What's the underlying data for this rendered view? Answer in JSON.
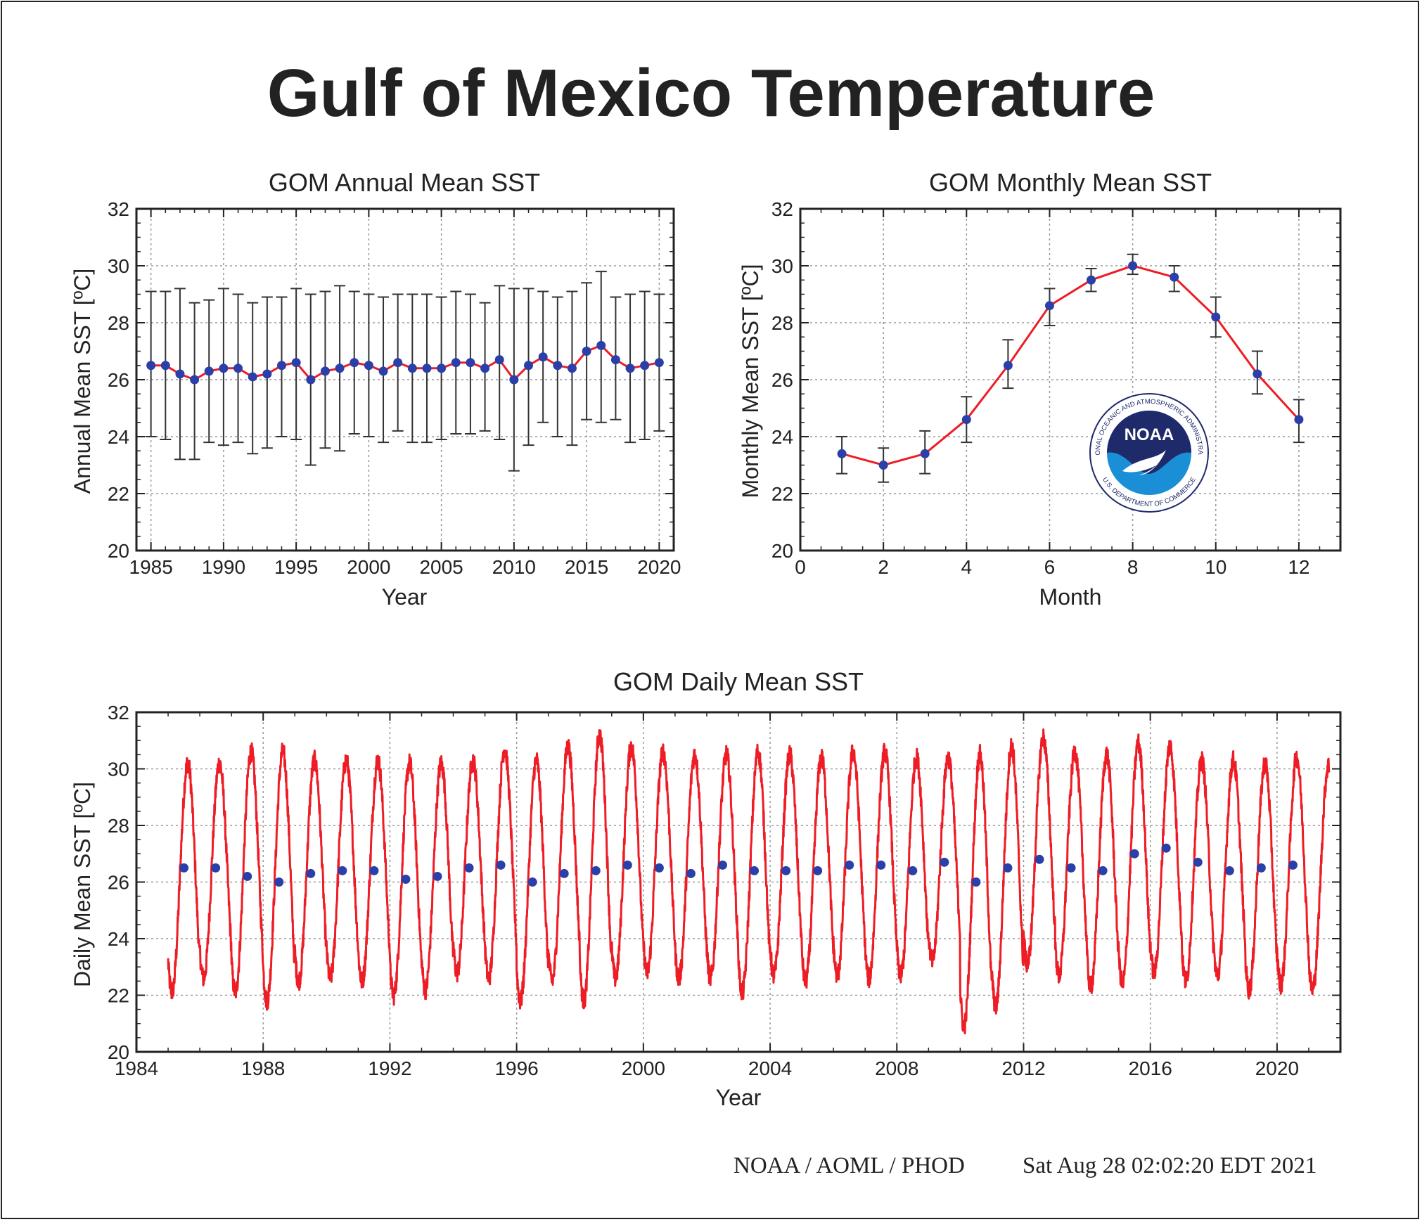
{
  "page_title": "Gulf of Mexico Temperature",
  "footer": {
    "left": "NOAA / AOML / PHOD",
    "right": "Sat Aug 28 02:02:20 EDT 2021"
  },
  "logo": {
    "name": "NOAA",
    "ring_text": "NATIONAL OCEANIC AND ATMOSPHERIC ADMINISTRATION · U.S. DEPARTMENT OF COMMERCE",
    "colors": {
      "navy": "#1f2a6b",
      "blue": "#1a8fd6"
    }
  },
  "colors": {
    "line": "#ee1c25",
    "marker": "#2b3fa8",
    "errorbar": "#333333",
    "grid": "#999999"
  },
  "chart_data": [
    {
      "id": "annual",
      "type": "line",
      "title": "GOM Annual Mean SST",
      "xlabel": "Year",
      "ylabel": "Annual Mean SST [ºC]",
      "xlim": [
        1984,
        2021
      ],
      "ylim": [
        20,
        32
      ],
      "xticks": [
        1985,
        1990,
        1995,
        2000,
        2005,
        2010,
        2015,
        2020
      ],
      "yticks": [
        20,
        22,
        24,
        26,
        28,
        30,
        32
      ],
      "grid": true,
      "x": [
        1985,
        1986,
        1987,
        1988,
        1989,
        1990,
        1991,
        1992,
        1993,
        1994,
        1995,
        1996,
        1997,
        1998,
        1999,
        2000,
        2001,
        2002,
        2003,
        2004,
        2005,
        2006,
        2007,
        2008,
        2009,
        2010,
        2011,
        2012,
        2013,
        2014,
        2015,
        2016,
        2017,
        2018,
        2019,
        2020
      ],
      "values": [
        26.5,
        26.5,
        26.2,
        26.0,
        26.3,
        26.4,
        26.4,
        26.1,
        26.2,
        26.5,
        26.6,
        26.0,
        26.3,
        26.4,
        26.6,
        26.5,
        26.3,
        26.6,
        26.4,
        26.4,
        26.4,
        26.6,
        26.6,
        26.4,
        26.7,
        26.0,
        26.5,
        26.8,
        26.5,
        26.4,
        27.0,
        27.2,
        26.7,
        26.4,
        26.5,
        26.6
      ],
      "err_low": [
        24.0,
        23.9,
        23.2,
        23.2,
        23.8,
        23.7,
        23.8,
        23.4,
        23.6,
        24.0,
        23.9,
        23.0,
        23.6,
        23.5,
        24.1,
        24.0,
        23.8,
        24.2,
        23.8,
        23.8,
        23.9,
        24.1,
        24.1,
        24.2,
        23.9,
        22.8,
        23.7,
        24.5,
        24.0,
        23.7,
        24.6,
        24.5,
        24.6,
        23.8,
        23.9,
        24.2
      ],
      "err_high": [
        29.1,
        29.1,
        29.2,
        28.7,
        28.8,
        29.2,
        29.0,
        28.7,
        28.9,
        28.9,
        29.2,
        29.0,
        29.1,
        29.3,
        29.1,
        29.0,
        28.9,
        29.0,
        29.0,
        29.0,
        28.9,
        29.1,
        29.0,
        28.7,
        29.3,
        29.2,
        29.2,
        29.1,
        28.9,
        29.1,
        29.4,
        29.8,
        28.9,
        29.0,
        29.1,
        29.0
      ]
    },
    {
      "id": "monthly",
      "type": "line",
      "title": "GOM Monthly Mean SST",
      "xlabel": "Month",
      "ylabel": "Monthly Mean SST [ºC]",
      "xlim": [
        0,
        13
      ],
      "ylim": [
        20,
        32
      ],
      "xticks": [
        0,
        2,
        4,
        6,
        8,
        10,
        12
      ],
      "yticks": [
        20,
        22,
        24,
        26,
        28,
        30,
        32
      ],
      "grid": true,
      "x": [
        1,
        2,
        3,
        4,
        5,
        6,
        7,
        8,
        9,
        10,
        11,
        12
      ],
      "values": [
        23.4,
        23.0,
        23.4,
        24.6,
        26.5,
        28.6,
        29.5,
        30.0,
        29.6,
        28.2,
        26.2,
        24.6
      ],
      "err_low": [
        22.7,
        22.4,
        22.7,
        23.8,
        25.7,
        27.9,
        29.1,
        29.7,
        29.1,
        27.5,
        25.5,
        23.8
      ],
      "err_high": [
        24.0,
        23.6,
        24.2,
        25.4,
        27.4,
        29.2,
        29.9,
        30.4,
        30.0,
        28.9,
        27.0,
        25.3
      ]
    },
    {
      "id": "daily",
      "type": "line",
      "title": "GOM Daily Mean SST",
      "xlabel": "Year",
      "ylabel": "Daily Mean SST [ºC]",
      "xlim": [
        1984,
        2022
      ],
      "ylim": [
        20,
        32
      ],
      "xticks": [
        1984,
        1988,
        1992,
        1996,
        2000,
        2004,
        2008,
        2012,
        2016,
        2020
      ],
      "yticks": [
        20,
        22,
        24,
        26,
        28,
        30,
        32
      ],
      "grid": true,
      "daily_series": {
        "name": "Daily Mean SST",
        "start_year": 1985,
        "end_year": 2021.65,
        "yearly_max": [
          30.2,
          30.2,
          30.6,
          30.6,
          30.3,
          30.3,
          30.3,
          30.2,
          30.2,
          30.3,
          30.7,
          30.3,
          30.8,
          31.2,
          30.8,
          30.6,
          30.5,
          30.5,
          30.6,
          30.5,
          30.4,
          30.6,
          30.6,
          30.4,
          30.4,
          30.5,
          30.8,
          31.1,
          30.6,
          30.5,
          30.9,
          30.8,
          30.3,
          30.3,
          30.2,
          30.4,
          30.1
        ],
        "yearly_min": [
          22.1,
          22.6,
          22.1,
          21.8,
          22.5,
          22.6,
          22.5,
          22.0,
          22.2,
          22.8,
          22.6,
          21.8,
          22.5,
          21.8,
          22.6,
          22.8,
          22.6,
          22.6,
          22.1,
          22.7,
          22.5,
          22.7,
          22.6,
          22.7,
          23.2,
          20.9,
          21.6,
          23.1,
          22.7,
          22.3,
          22.4,
          22.8,
          22.5,
          22.7,
          22.2,
          22.4,
          22.2
        ]
      },
      "annual_means": {
        "x": [
          1985.5,
          1986.5,
          1987.5,
          1988.5,
          1989.5,
          1990.5,
          1991.5,
          1992.5,
          1993.5,
          1994.5,
          1995.5,
          1996.5,
          1997.5,
          1998.5,
          1999.5,
          2000.5,
          2001.5,
          2002.5,
          2003.5,
          2004.5,
          2005.5,
          2006.5,
          2007.5,
          2008.5,
          2009.5,
          2010.5,
          2011.5,
          2012.5,
          2013.5,
          2014.5,
          2015.5,
          2016.5,
          2017.5,
          2018.5,
          2019.5,
          2020.5
        ],
        "values": [
          26.5,
          26.5,
          26.2,
          26.0,
          26.3,
          26.4,
          26.4,
          26.1,
          26.2,
          26.5,
          26.6,
          26.0,
          26.3,
          26.4,
          26.6,
          26.5,
          26.3,
          26.6,
          26.4,
          26.4,
          26.4,
          26.6,
          26.6,
          26.4,
          26.7,
          26.0,
          26.5,
          26.8,
          26.5,
          26.4,
          27.0,
          27.2,
          26.7,
          26.4,
          26.5,
          26.6
        ]
      }
    }
  ]
}
